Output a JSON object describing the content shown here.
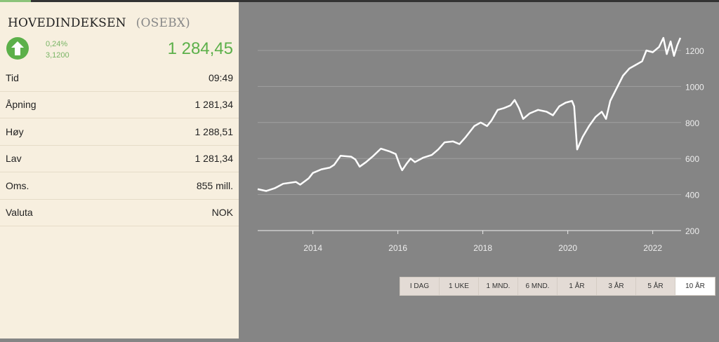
{
  "header": {
    "name": "HOVEDINDEKSEN",
    "code": "(OSEBX)",
    "change_pct": "0,24%",
    "change_abs": "3,1200",
    "price": "1 284,45",
    "trend_icon": "arrow-up-icon"
  },
  "rows": [
    {
      "label": "Tid",
      "value": "09:49"
    },
    {
      "label": "Åpning",
      "value": "1 281,34"
    },
    {
      "label": "Høy",
      "value": "1 288,51"
    },
    {
      "label": "Lav",
      "value": "1 281,34"
    },
    {
      "label": "Oms.",
      "value": "855 mill."
    },
    {
      "label": "Valuta",
      "value": "NOK"
    }
  ],
  "tabs": [
    {
      "label": "I DAG"
    },
    {
      "label": "1 UKE"
    },
    {
      "label": "1 MND."
    },
    {
      "label": "6 MND."
    },
    {
      "label": "1 ÅR"
    },
    {
      "label": "3 ÅR"
    },
    {
      "label": "5 ÅR"
    },
    {
      "label": "10 ÅR",
      "active": true
    }
  ],
  "colors": {
    "up": "#5cb04a",
    "panel": "#f7efdf",
    "chart_bg": "#858585"
  },
  "chart_data": {
    "type": "line",
    "title": "",
    "xlabel": "",
    "ylabel": "",
    "xlim": [
      2012.7,
      2022.65
    ],
    "ylim": [
      200,
      1300
    ],
    "xticks": [
      2014,
      2016,
      2018,
      2020,
      2022
    ],
    "yticks": [
      200,
      400,
      600,
      800,
      1000,
      1200
    ],
    "grid": "horizontal",
    "series": [
      {
        "name": "OSEBX",
        "points": [
          [
            2012.7,
            430
          ],
          [
            2012.9,
            420
          ],
          [
            2013.1,
            435
          ],
          [
            2013.3,
            460
          ],
          [
            2013.6,
            470
          ],
          [
            2013.7,
            455
          ],
          [
            2013.9,
            490
          ],
          [
            2014.0,
            520
          ],
          [
            2014.2,
            540
          ],
          [
            2014.4,
            550
          ],
          [
            2014.5,
            565
          ],
          [
            2014.65,
            615
          ],
          [
            2014.9,
            610
          ],
          [
            2015.0,
            595
          ],
          [
            2015.1,
            555
          ],
          [
            2015.25,
            580
          ],
          [
            2015.4,
            610
          ],
          [
            2015.6,
            655
          ],
          [
            2015.8,
            640
          ],
          [
            2015.95,
            625
          ],
          [
            2016.05,
            560
          ],
          [
            2016.1,
            535
          ],
          [
            2016.2,
            570
          ],
          [
            2016.3,
            600
          ],
          [
            2016.4,
            580
          ],
          [
            2016.6,
            605
          ],
          [
            2016.8,
            620
          ],
          [
            2016.95,
            650
          ],
          [
            2017.1,
            690
          ],
          [
            2017.3,
            695
          ],
          [
            2017.45,
            680
          ],
          [
            2017.6,
            720
          ],
          [
            2017.8,
            780
          ],
          [
            2017.95,
            800
          ],
          [
            2018.1,
            780
          ],
          [
            2018.2,
            810
          ],
          [
            2018.35,
            870
          ],
          [
            2018.5,
            880
          ],
          [
            2018.65,
            895
          ],
          [
            2018.75,
            925
          ],
          [
            2018.85,
            880
          ],
          [
            2018.95,
            820
          ],
          [
            2019.1,
            850
          ],
          [
            2019.3,
            870
          ],
          [
            2019.5,
            860
          ],
          [
            2019.65,
            840
          ],
          [
            2019.8,
            890
          ],
          [
            2019.95,
            910
          ],
          [
            2020.1,
            920
          ],
          [
            2020.15,
            890
          ],
          [
            2020.22,
            650
          ],
          [
            2020.35,
            720
          ],
          [
            2020.5,
            780
          ],
          [
            2020.65,
            830
          ],
          [
            2020.8,
            860
          ],
          [
            2020.9,
            820
          ],
          [
            2021.0,
            920
          ],
          [
            2021.15,
            990
          ],
          [
            2021.3,
            1060
          ],
          [
            2021.45,
            1100
          ],
          [
            2021.6,
            1120
          ],
          [
            2021.75,
            1140
          ],
          [
            2021.85,
            1200
          ],
          [
            2022.0,
            1190
          ],
          [
            2022.15,
            1220
          ],
          [
            2022.25,
            1270
          ],
          [
            2022.33,
            1180
          ],
          [
            2022.42,
            1250
          ],
          [
            2022.5,
            1170
          ],
          [
            2022.58,
            1230
          ],
          [
            2022.65,
            1270
          ]
        ]
      }
    ]
  }
}
